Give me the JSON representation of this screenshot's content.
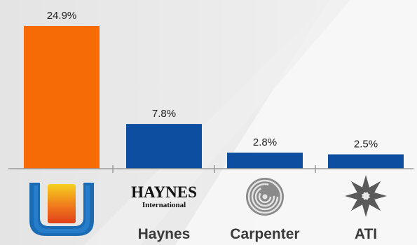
{
  "chart_data": {
    "type": "bar",
    "categories": [
      "",
      "Haynes",
      "Carpenter",
      "ATI"
    ],
    "values": [
      24.9,
      7.8,
      2.8,
      2.5
    ],
    "value_labels": [
      "24.9%",
      "7.8%",
      "2.8%",
      "2.5%"
    ],
    "ylim": [
      0,
      26
    ],
    "grid": false,
    "colors": [
      "#f76b07",
      "#0d4ea0",
      "#0d4ea0",
      "#0d4ea0"
    ],
    "logos": [
      {
        "icon": "universal-stainless-logo-icon"
      },
      {
        "icon": "haynes-international-logo-icon",
        "text_main": "HAYNES",
        "text_sub": "International"
      },
      {
        "icon": "carpenter-logo-icon"
      },
      {
        "icon": "ati-star-logo-icon"
      }
    ]
  }
}
